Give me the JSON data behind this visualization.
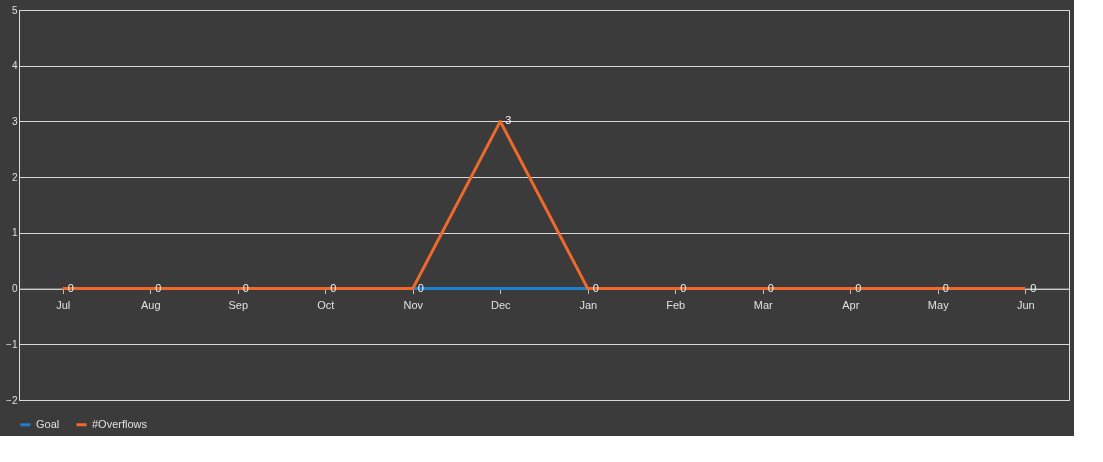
{
  "chart_data": {
    "type": "line",
    "categories": [
      "Jul",
      "Aug",
      "Sep",
      "Oct",
      "Nov",
      "Dec",
      "Jan",
      "Feb",
      "Mar",
      "Apr",
      "May",
      "Jun"
    ],
    "series": [
      {
        "name": "Goal",
        "color": "#1f7fd0",
        "values": [
          null,
          null,
          null,
          null,
          0,
          0,
          0,
          null,
          null,
          null,
          null,
          null
        ]
      },
      {
        "name": "#Overflows",
        "color": "#f0692a",
        "values": [
          0,
          0,
          0,
          0,
          0,
          3,
          0,
          0,
          0,
          0,
          0,
          0
        ],
        "value_labels": [
          "0",
          "0",
          "0",
          "0",
          "0",
          "3",
          "0",
          "0",
          "0",
          "0",
          "0",
          "0"
        ]
      }
    ],
    "ylim": [
      -2,
      5
    ],
    "yticks": [
      -2,
      -1,
      0,
      1,
      2,
      3,
      4,
      5
    ],
    "grid": "y",
    "legend": "bottom",
    "marker": "none",
    "line_style": "solid"
  }
}
